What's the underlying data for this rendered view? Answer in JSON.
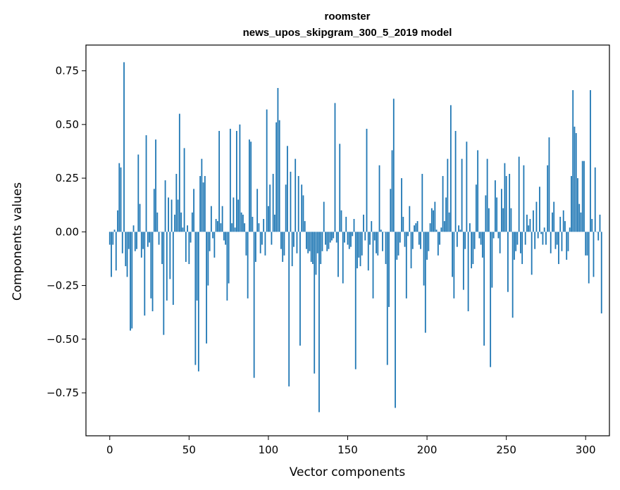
{
  "chart_data": {
    "type": "bar",
    "title": "roomster",
    "subtitle": "news_upos_skipgram_300_5_2019 model",
    "xlabel": "Vector components",
    "ylabel": "Components values",
    "xlim": [
      -15,
      315
    ],
    "ylim": [
      -0.95,
      0.87
    ],
    "xticks": [
      0,
      50,
      100,
      150,
      200,
      250,
      300
    ],
    "yticks": [
      -0.75,
      -0.5,
      -0.25,
      0.0,
      0.25,
      0.5,
      0.75
    ],
    "ytick_labels": [
      "−0.75",
      "−0.50",
      "−0.25",
      "0.00",
      "0.25",
      "0.50",
      "0.75"
    ],
    "bar_color": "#1f77b4",
    "values": [
      -0.06,
      -0.21,
      -0.06,
      0.01,
      -0.18,
      0.1,
      0.32,
      0.3,
      -0.1,
      0.79,
      -0.16,
      -0.21,
      -0.08,
      -0.46,
      -0.45,
      0.03,
      -0.09,
      -0.08,
      0.36,
      0.13,
      -0.12,
      -0.08,
      -0.39,
      0.45,
      -0.07,
      -0.05,
      -0.31,
      -0.37,
      0.2,
      0.43,
      0.09,
      -0.06,
      0.0,
      -0.15,
      -0.48,
      0.24,
      -0.32,
      0.16,
      -0.22,
      0.15,
      -0.34,
      0.08,
      0.27,
      0.15,
      0.55,
      0.09,
      0.02,
      0.39,
      -0.14,
      0.03,
      -0.15,
      -0.05,
      0.09,
      0.2,
      -0.62,
      -0.32,
      -0.65,
      0.26,
      0.34,
      0.23,
      0.26,
      -0.52,
      -0.25,
      -0.09,
      0.12,
      -0.03,
      -0.12,
      0.06,
      0.05,
      0.47,
      0.04,
      0.12,
      -0.04,
      -0.06,
      -0.32,
      -0.24,
      0.48,
      0.04,
      0.16,
      0.02,
      0.47,
      0.15,
      0.5,
      0.09,
      0.08,
      0.04,
      -0.11,
      -0.31,
      0.43,
      0.42,
      0.07,
      -0.68,
      -0.14,
      0.2,
      0.04,
      -0.1,
      -0.06,
      0.06,
      -0.11,
      0.57,
      0.12,
      0.22,
      -0.06,
      0.27,
      0.08,
      0.51,
      0.67,
      0.52,
      -0.08,
      -0.14,
      -0.11,
      0.22,
      0.4,
      -0.72,
      0.28,
      -0.16,
      -0.07,
      0.34,
      -0.1,
      0.26,
      -0.53,
      0.22,
      0.17,
      0.05,
      -0.08,
      -0.1,
      -0.09,
      -0.14,
      -0.15,
      -0.66,
      -0.2,
      -0.1,
      -0.84,
      -0.15,
      -0.09,
      0.14,
      -0.06,
      -0.09,
      -0.08,
      -0.05,
      -0.04,
      -0.03,
      0.6,
      -0.05,
      -0.21,
      0.41,
      0.1,
      -0.24,
      -0.05,
      0.07,
      -0.06,
      -0.08,
      -0.07,
      -0.02,
      0.06,
      -0.64,
      -0.17,
      -0.12,
      -0.16,
      -0.11,
      0.08,
      -0.04,
      0.48,
      -0.18,
      -0.06,
      0.05,
      -0.31,
      -0.04,
      -0.1,
      -0.11,
      0.31,
      0.01,
      -0.09,
      0.0,
      -0.15,
      -0.62,
      -0.35,
      0.2,
      0.38,
      0.62,
      -0.82,
      -0.13,
      -0.11,
      -0.05,
      0.25,
      0.07,
      -0.07,
      -0.31,
      -0.02,
      0.12,
      -0.17,
      -0.08,
      0.03,
      0.04,
      0.05,
      -0.06,
      -0.08,
      0.27,
      -0.25,
      -0.47,
      -0.13,
      -0.09,
      0.04,
      0.11,
      0.1,
      0.14,
      0.01,
      -0.11,
      -0.06,
      0.02,
      0.26,
      0.05,
      0.16,
      0.34,
      0.09,
      0.59,
      -0.21,
      -0.31,
      0.47,
      -0.07,
      0.03,
      0.01,
      0.34,
      -0.27,
      -0.08,
      0.42,
      -0.37,
      0.04,
      -0.17,
      -0.15,
      -0.08,
      0.22,
      0.38,
      -0.03,
      -0.06,
      -0.12,
      -0.53,
      0.17,
      0.34,
      0.11,
      -0.63,
      -0.26,
      -0.03,
      0.24,
      0.16,
      -0.03,
      -0.1,
      0.2,
      0.11,
      0.32,
      0.26,
      -0.28,
      0.27,
      0.11,
      -0.4,
      -0.13,
      -0.09,
      -0.06,
      0.35,
      -0.1,
      -0.15,
      0.31,
      -0.06,
      0.08,
      0.03,
      0.06,
      -0.2,
      0.1,
      -0.08,
      0.14,
      -0.03,
      0.21,
      -0.01,
      -0.06,
      0.02,
      -0.06,
      0.31,
      0.44,
      -0.1,
      0.09,
      0.14,
      -0.08,
      -0.06,
      -0.15,
      0.07,
      -0.09,
      0.1,
      0.05,
      -0.13,
      -0.09,
      0.02,
      0.26,
      0.66,
      0.49,
      0.46,
      0.25,
      0.13,
      0.09,
      0.33,
      0.33,
      -0.11,
      -0.11,
      -0.24,
      0.66,
      0.06,
      -0.21,
      0.3,
      0.0,
      -0.04,
      0.08,
      -0.38
    ]
  }
}
